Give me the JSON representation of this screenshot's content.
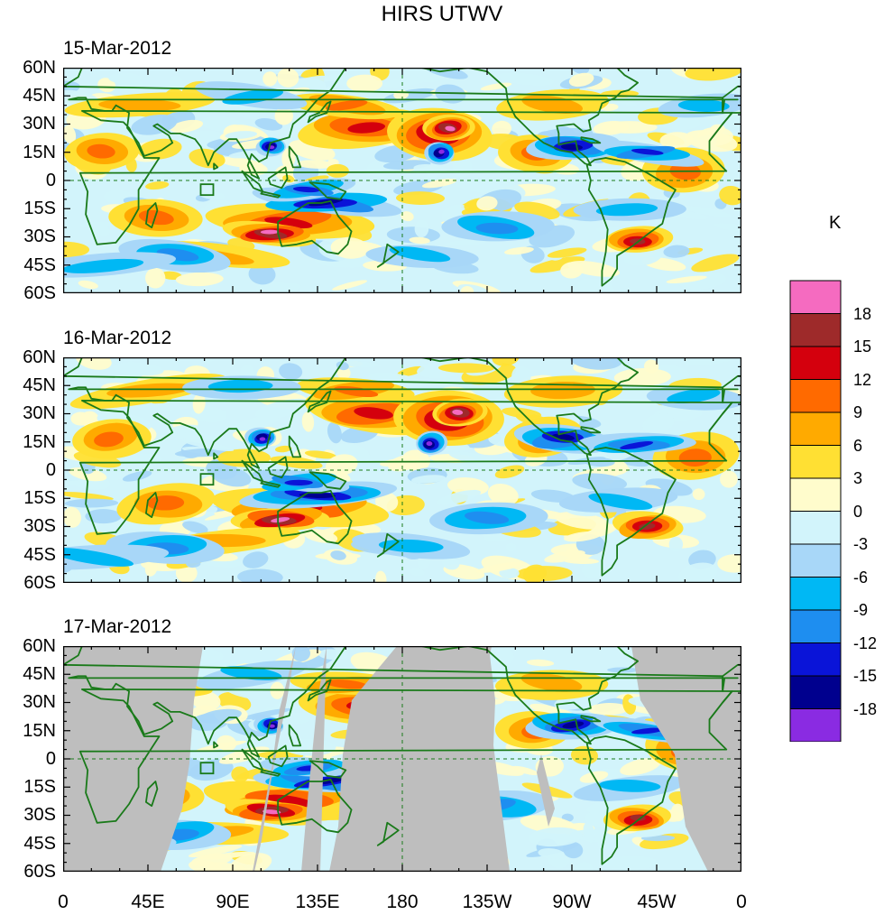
{
  "title": "HIRS UTWV",
  "panels": [
    {
      "date": "15-Mar-2012",
      "field": "anomaly",
      "missing_data": false
    },
    {
      "date": "16-Mar-2012",
      "field": "anomaly",
      "missing_data": false
    },
    {
      "date": "17-Mar-2012",
      "field": "anomaly",
      "missing_data": true
    }
  ],
  "lat_labels": [
    "60N",
    "45N",
    "30N",
    "15N",
    "0",
    "15S",
    "30S",
    "45S",
    "60S"
  ],
  "lon_labels": [
    "0",
    "45E",
    "90E",
    "135E",
    "180",
    "135W",
    "90W",
    "45W",
    "0"
  ],
  "colorbar": {
    "unit": "K",
    "labels": [
      "18",
      "15",
      "12",
      "9",
      "6",
      "3",
      "0",
      "-3",
      "-6",
      "-9",
      "-12",
      "-15",
      "-18"
    ],
    "colors": [
      "#f56bc0",
      "#9e2a2a",
      "#d4000d",
      "#ff6a00",
      "#ffaa00",
      "#ffe033",
      "#fffccc",
      "#d2f4fb",
      "#a8d7f8",
      "#00b8f4",
      "#1e8ef0",
      "#0a14d8",
      "#00008e",
      "#8a2be2"
    ]
  },
  "colors": {
    "land_outline": "#1a7a1a",
    "missing": "#bebebe",
    "equator_line": "#1a7a1a"
  }
}
